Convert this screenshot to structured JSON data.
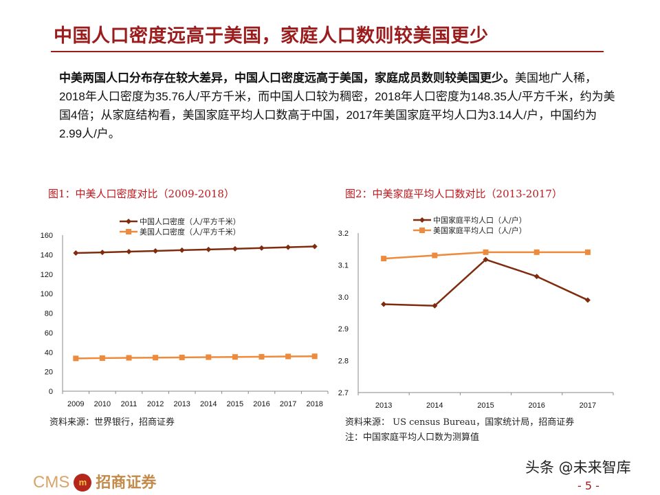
{
  "header": {
    "title": "中国人口密度远高于美国，家庭人口数则较美国更少"
  },
  "body": {
    "lead_bold": "中美两国人口分布存在较大差异，中国人口密度远高于美国，家庭成员数则较美国更少。",
    "text": "美国地广人稀，2018年人口密度为35.76人/平方千米，而中国人口较为稠密，2018年人口密度为148.35人/平方千米，约为美国4倍；从家庭结构看，美国家庭平均人口数高于中国，2017年美国家庭平均人口为3.14人/户，中国约为2.99人/户。"
  },
  "colors": {
    "title": "#9b1c1c",
    "china": "#7f2b0e",
    "us": "#ee8a3c",
    "caption": "#c0161b"
  },
  "chart_data": [
    {
      "type": "line",
      "title": "图1：中美人口密度对比（2009-2018）",
      "categories": [
        "2009",
        "2010",
        "2011",
        "2012",
        "2013",
        "2014",
        "2015",
        "2016",
        "2017",
        "2018"
      ],
      "ylim": [
        0,
        160
      ],
      "yticks": [
        0,
        20,
        40,
        60,
        80,
        100,
        120,
        140,
        160
      ],
      "grid": false,
      "legend": "top",
      "series": [
        {
          "name": "中国人口密度（人/平方千米）",
          "marker": "diamond",
          "values": [
            141.7,
            142.3,
            143.1,
            143.8,
            144.6,
            145.3,
            146.0,
            146.8,
            147.6,
            148.35
          ]
        },
        {
          "name": "美国人口密度（人/平方千米）",
          "marker": "square",
          "values": [
            33.6,
            33.9,
            34.2,
            34.4,
            34.6,
            34.9,
            35.1,
            35.3,
            35.6,
            35.76
          ]
        }
      ],
      "source": "资料来源：世界银行，招商证券"
    },
    {
      "type": "line",
      "title": "图2：中美家庭平均人口数对比（2013-2017）",
      "categories": [
        "2013",
        "2014",
        "2015",
        "2016",
        "2017"
      ],
      "ylim": [
        2.7,
        3.2
      ],
      "yticks": [
        "2.7",
        "2.8",
        "2.9",
        "3.0",
        "3.1",
        "3.2"
      ],
      "grid": false,
      "legend": "top",
      "series": [
        {
          "name": "中国家庭平均人口（人/户）",
          "marker": "diamond",
          "values": [
            2.977,
            2.972,
            3.117,
            3.064,
            2.99
          ]
        },
        {
          "name": "美国家庭平均人口（人/户）",
          "marker": "square",
          "values": [
            3.12,
            3.13,
            3.14,
            3.14,
            3.14
          ]
        }
      ],
      "source": "资料来源： US census Bureau，国家统计局，招商证券",
      "note": "注：中国家庭平均人口数为测算值"
    }
  ],
  "footer": {
    "logo_text": "CMS",
    "logo_cn": "招商证券",
    "logo_badge": "m",
    "watermark": "头条 @未来智库",
    "page": "- 5 -"
  }
}
